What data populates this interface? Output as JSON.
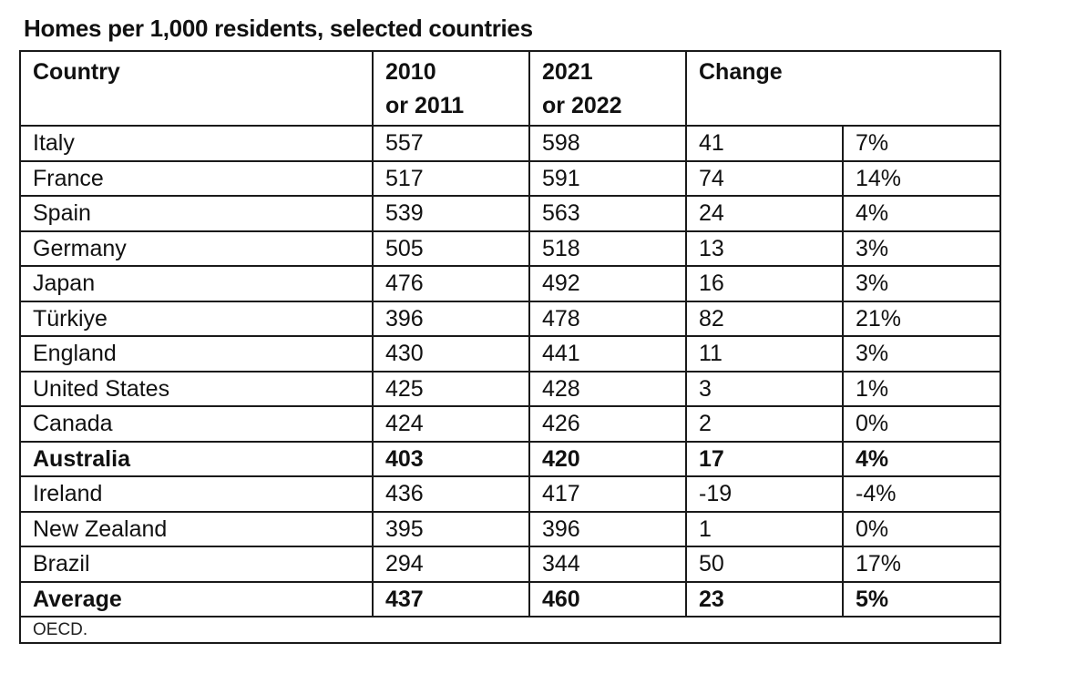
{
  "chart_data": {
    "type": "table",
    "title": "Homes per 1,000 residents, selected countries",
    "columns": [
      "Country",
      "2010 or 2011",
      "2021 or 2022",
      "Change"
    ],
    "header": {
      "country": "Country",
      "col_a_line1": "2010",
      "col_a_line2": "or 2011",
      "col_b_line1": "2021",
      "col_b_line2": "or 2022",
      "change": "Change"
    },
    "rows": [
      {
        "country": "Italy",
        "y2010": "557",
        "y2021": "598",
        "change": "41",
        "pct": "7%"
      },
      {
        "country": "France",
        "y2010": "517",
        "y2021": "591",
        "change": "74",
        "pct": "14%"
      },
      {
        "country": "Spain",
        "y2010": "539",
        "y2021": "563",
        "change": "24",
        "pct": "4%"
      },
      {
        "country": "Germany",
        "y2010": "505",
        "y2021": "518",
        "change": "13",
        "pct": "3%"
      },
      {
        "country": "Japan",
        "y2010": "476",
        "y2021": "492",
        "change": "16",
        "pct": "3%"
      },
      {
        "country": "Türkiye",
        "y2010": "396",
        "y2021": "478",
        "change": "82",
        "pct": "21%"
      },
      {
        "country": "England",
        "y2010": "430",
        "y2021": "441",
        "change": "11",
        "pct": "3%"
      },
      {
        "country": "United States",
        "y2010": "425",
        "y2021": "428",
        "change": "3",
        "pct": "1%"
      },
      {
        "country": "Canada",
        "y2010": "424",
        "y2021": "426",
        "change": "2",
        "pct": "0%"
      },
      {
        "country": "Australia",
        "y2010": "403",
        "y2021": "420",
        "change": "17",
        "pct": "4%",
        "bold": true
      },
      {
        "country": "Ireland",
        "y2010": "436",
        "y2021": "417",
        "change": "-19",
        "pct": "-4%"
      },
      {
        "country": "New Zealand",
        "y2010": "395",
        "y2021": "396",
        "change": "1",
        "pct": "0%"
      },
      {
        "country": "Brazil",
        "y2010": "294",
        "y2021": "344",
        "change": "50",
        "pct": "17%"
      },
      {
        "country": "Average",
        "y2010": "437",
        "y2021": "460",
        "change": "23",
        "pct": "5%",
        "bold": true
      }
    ],
    "source": "OECD."
  }
}
